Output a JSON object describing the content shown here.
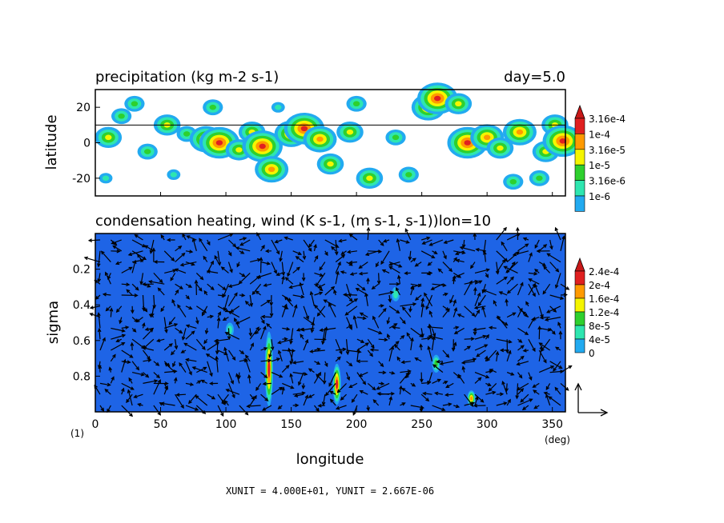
{
  "chart_data": [
    {
      "type": "heatmap",
      "title": "precipitation (kg m-2 s-1)",
      "annotation": "day=5.0",
      "ylabel": "latitude",
      "xlim": [
        0,
        360
      ],
      "ylim": [
        -30,
        30
      ],
      "yticks": [
        "20",
        "0",
        "-20"
      ],
      "ytick_values": [
        20,
        0,
        -20
      ],
      "reference_line_lat": 10,
      "legend": {
        "labels": [
          "3.16e-4",
          "1e-4",
          "3.16e-5",
          "1e-5",
          "3.16e-6",
          "1e-6"
        ],
        "colors": [
          "#e02020",
          "#ff9a00",
          "#f5f500",
          "#2ed02e",
          "#2ee6b0",
          "#22aaf0"
        ],
        "extend_color": "#c81818"
      },
      "cells": [
        {
          "lon": 10,
          "lat": 3,
          "level": 3
        },
        {
          "lon": 20,
          "lat": 15,
          "level": 2
        },
        {
          "lon": 30,
          "lat": 22,
          "level": 2
        },
        {
          "lon": 40,
          "lat": -5,
          "level": 2
        },
        {
          "lon": 55,
          "lat": 10,
          "level": 3
        },
        {
          "lon": 70,
          "lat": 5,
          "level": 2
        },
        {
          "lon": 85,
          "lat": 2,
          "level": 4
        },
        {
          "lon": 90,
          "lat": 20,
          "level": 2
        },
        {
          "lon": 95,
          "lat": 0,
          "level": 5
        },
        {
          "lon": 110,
          "lat": -4,
          "level": 3
        },
        {
          "lon": 120,
          "lat": 6,
          "level": 3
        },
        {
          "lon": 128,
          "lat": -2,
          "level": 5
        },
        {
          "lon": 135,
          "lat": -15,
          "level": 4
        },
        {
          "lon": 150,
          "lat": 5,
          "level": 4
        },
        {
          "lon": 160,
          "lat": 8,
          "level": 5
        },
        {
          "lon": 172,
          "lat": 2,
          "level": 4
        },
        {
          "lon": 180,
          "lat": -12,
          "level": 3
        },
        {
          "lon": 195,
          "lat": 6,
          "level": 3
        },
        {
          "lon": 210,
          "lat": -20,
          "level": 3
        },
        {
          "lon": 230,
          "lat": 3,
          "level": 2
        },
        {
          "lon": 240,
          "lat": -18,
          "level": 2
        },
        {
          "lon": 255,
          "lat": 20,
          "level": 4
        },
        {
          "lon": 262,
          "lat": 25,
          "level": 5
        },
        {
          "lon": 278,
          "lat": 22,
          "level": 3
        },
        {
          "lon": 285,
          "lat": 0,
          "level": 5
        },
        {
          "lon": 300,
          "lat": 3,
          "level": 4
        },
        {
          "lon": 310,
          "lat": -3,
          "level": 3
        },
        {
          "lon": 325,
          "lat": 6,
          "level": 4
        },
        {
          "lon": 340,
          "lat": -20,
          "level": 2
        },
        {
          "lon": 345,
          "lat": -5,
          "level": 3
        },
        {
          "lon": 352,
          "lat": 10,
          "level": 3
        },
        {
          "lon": 358,
          "lat": 1,
          "level": 5
        },
        {
          "lon": 8,
          "lat": -20,
          "level": 1
        },
        {
          "lon": 60,
          "lat": -18,
          "level": 1
        },
        {
          "lon": 140,
          "lat": 20,
          "level": 1
        },
        {
          "lon": 200,
          "lat": 22,
          "level": 2
        },
        {
          "lon": 320,
          "lat": -22,
          "level": 2
        }
      ]
    },
    {
      "type": "heatmap",
      "title": "condensation heating, wind (K s-1, (m s-1, s-1))lon=10",
      "xlabel": "longitude",
      "ylabel": "sigma",
      "xlim": [
        0,
        360
      ],
      "ylim": [
        1.0,
        0.0
      ],
      "xticks": [
        "0",
        "50",
        "100",
        "150",
        "200",
        "250",
        "300",
        "350"
      ],
      "xtick_values": [
        0,
        50,
        100,
        150,
        200,
        250,
        300,
        350
      ],
      "yticks": [
        "0.2",
        "0.4",
        "0.6",
        "0.8"
      ],
      "ytick_values": [
        0.2,
        0.4,
        0.6,
        0.8
      ],
      "x_unit": "(deg)",
      "figure_number": "(1)",
      "background_color": "#1e64e6",
      "legend": {
        "labels": [
          "2.4e-4",
          "2e-4",
          "1.6e-4",
          "1.2e-4",
          "8e-5",
          "4e-5",
          "0"
        ],
        "colors": [
          "#e02020",
          "#ff9a00",
          "#f5f500",
          "#2ed02e",
          "#2ee6b0",
          "#22aaf0",
          "#1e64e6"
        ],
        "extend_color": "#c81818"
      },
      "features": [
        {
          "lon": 133,
          "sigma_top": 0.55,
          "sigma_bottom": 0.97,
          "peak": 6
        },
        {
          "lon": 185,
          "sigma_top": 0.73,
          "sigma_bottom": 0.96,
          "peak": 6
        },
        {
          "lon": 261,
          "sigma_top": 0.68,
          "sigma_bottom": 0.78,
          "peak": 3
        },
        {
          "lon": 288,
          "sigma_top": 0.88,
          "sigma_bottom": 0.97,
          "peak": 5
        },
        {
          "lon": 103,
          "sigma_top": 0.5,
          "sigma_bottom": 0.58,
          "peak": 2
        },
        {
          "lon": 230,
          "sigma_top": 0.3,
          "sigma_bottom": 0.38,
          "peak": 2
        }
      ],
      "footer": "XUNIT = 4.000E+01, YUNIT = 2.667E-06"
    }
  ]
}
